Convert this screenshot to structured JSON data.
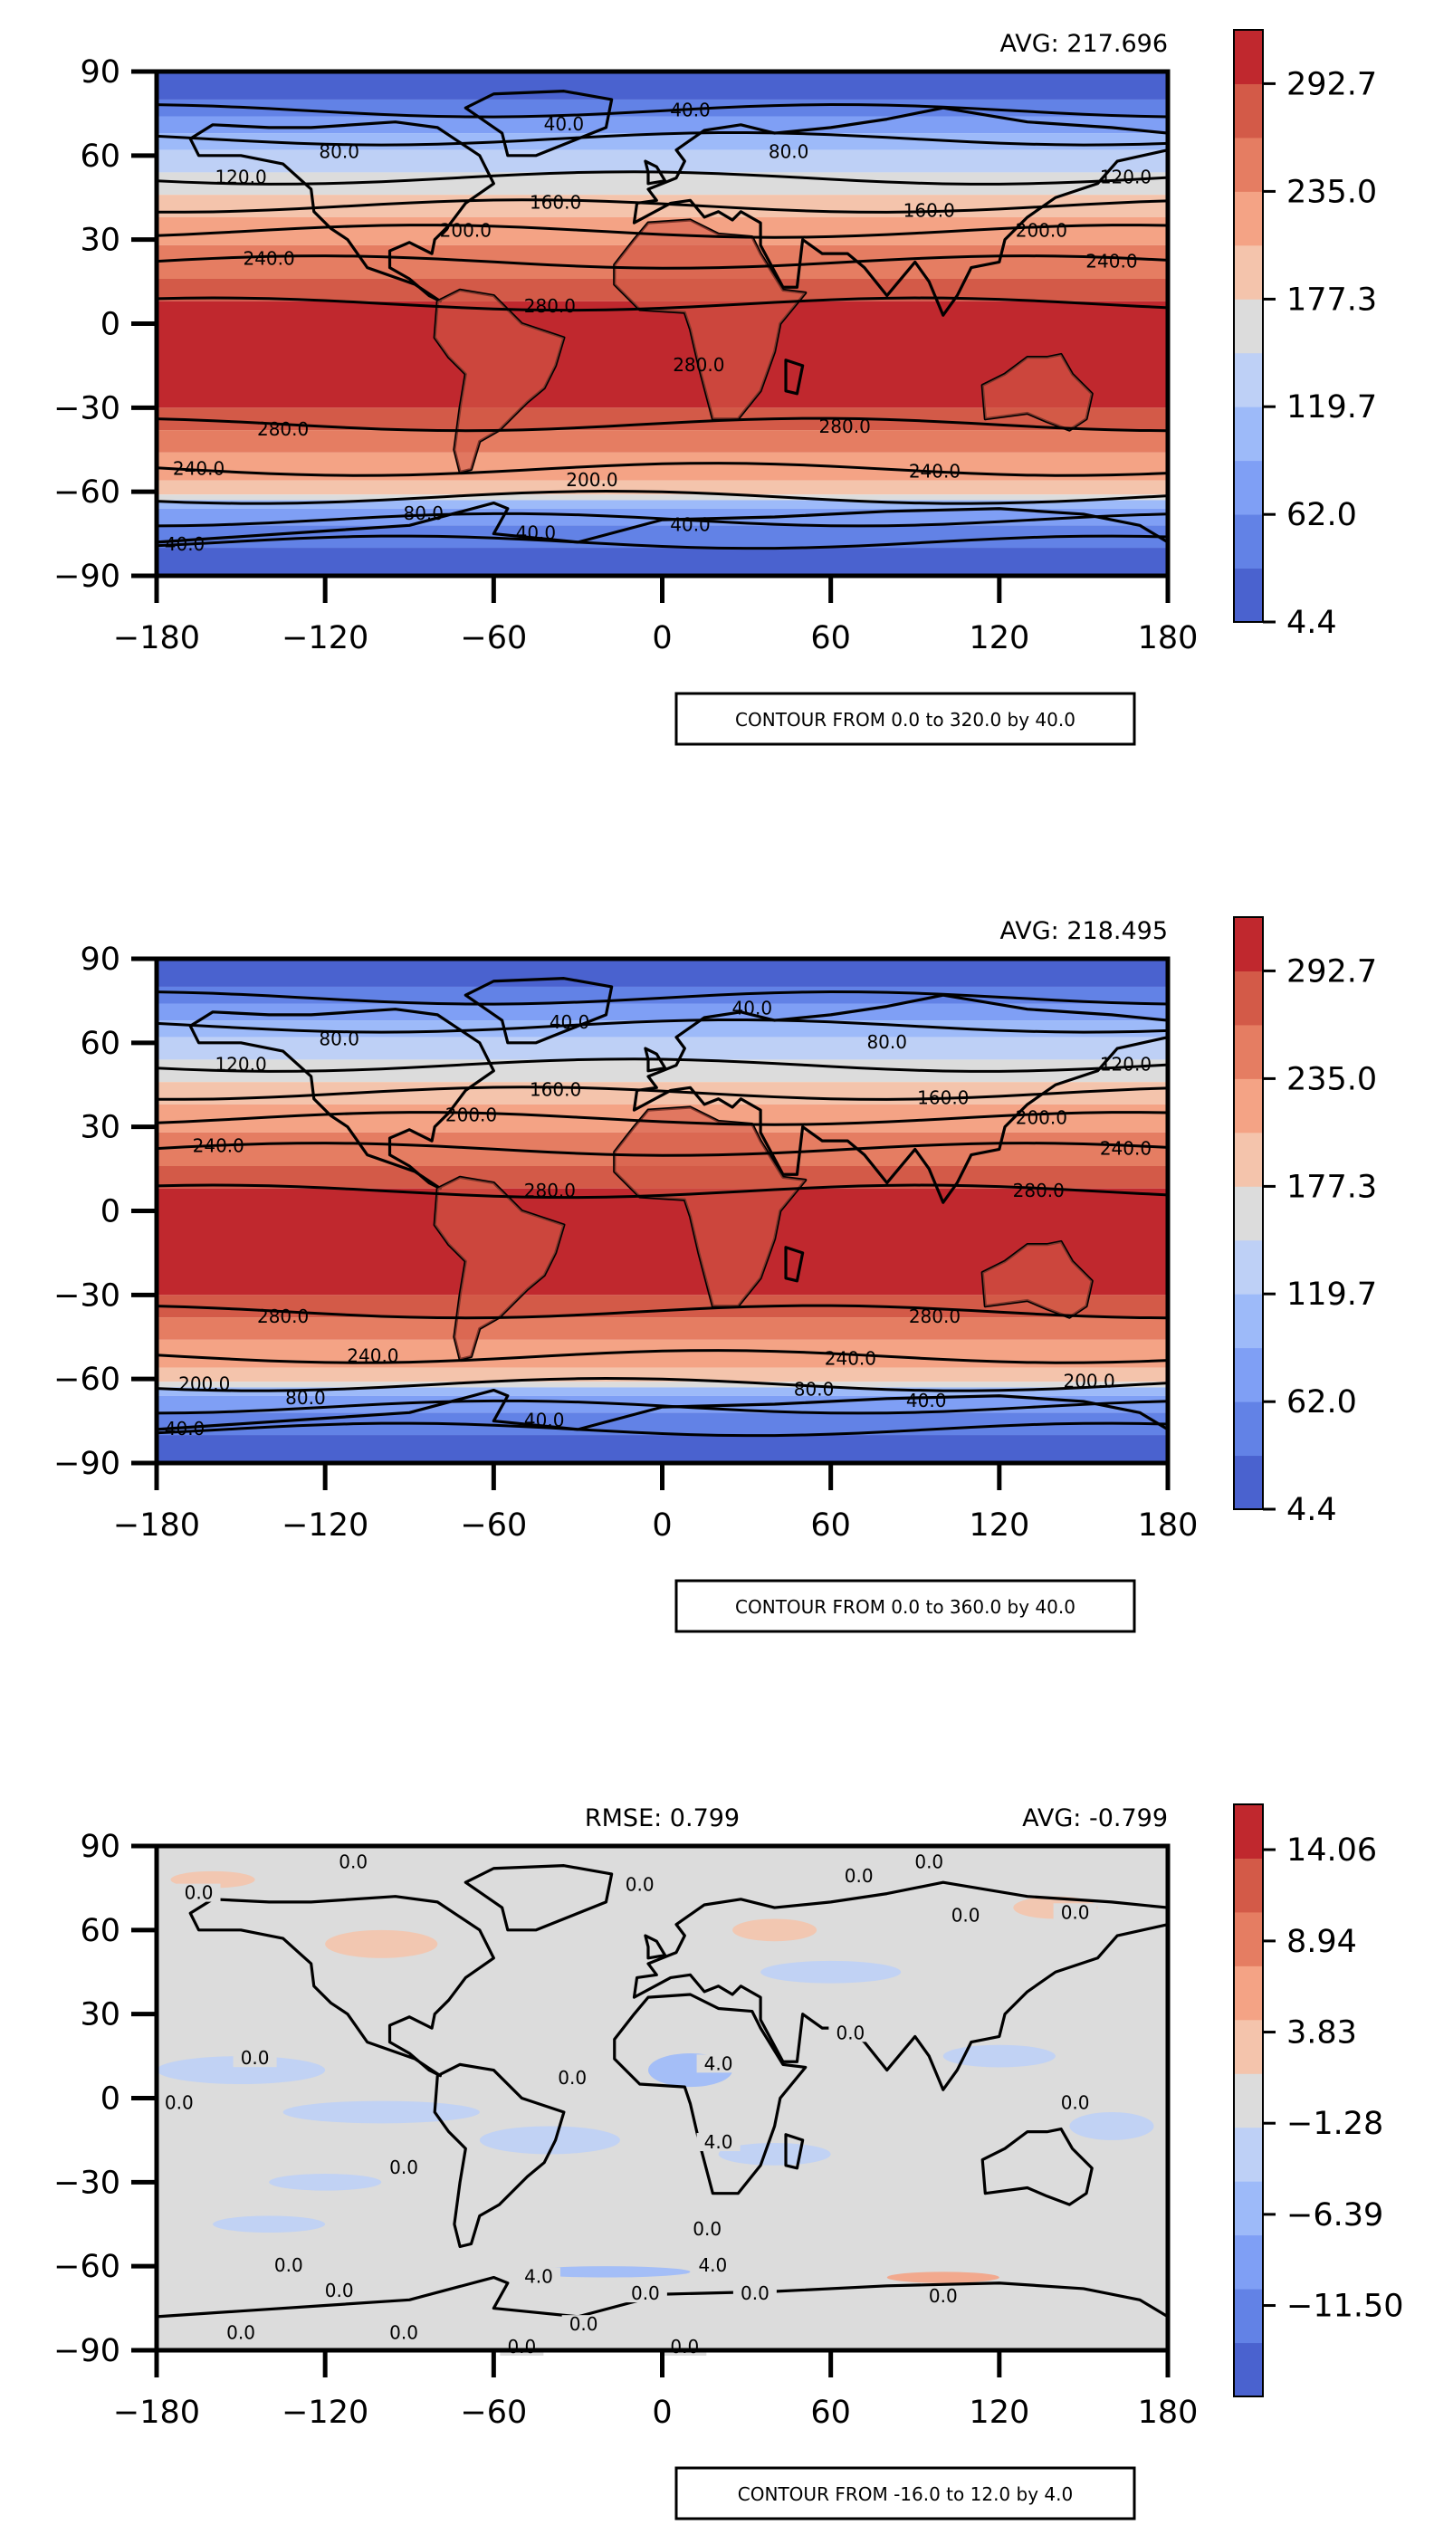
{
  "chart_data": [
    {
      "type": "heatmap",
      "title": "",
      "avg_label": "AVG: 217.696",
      "rmse_label": "",
      "xlim": [
        -180,
        180
      ],
      "ylim": [
        -90,
        90
      ],
      "x_ticks": [
        "−180",
        "−120",
        "−60",
        "0",
        "60",
        "120",
        "180"
      ],
      "y_ticks": [
        "90",
        "60",
        "30",
        "0",
        "−30",
        "−60",
        "−90"
      ],
      "colorbar_range": [
        4.4,
        321.5
      ],
      "colorbar_ticks": [
        "4.4",
        "62.0",
        "119.7",
        "177.3",
        "235.0",
        "292.7"
      ],
      "colorbar_tick_values": [
        4.4,
        62.0,
        119.7,
        177.3,
        235.0,
        292.7
      ],
      "colormap": [
        "#4a62cf",
        "#6282e6",
        "#7f9ff5",
        "#9dbaf9",
        "#bed0f6",
        "#dcdcdc",
        "#f4c4ac",
        "#f4a385",
        "#e57d62",
        "#d35a48",
        "#c0282e"
      ],
      "contour_note": "CONTOUR FROM 0.0 to 320.0 by 40.0",
      "contour_labels": [
        {
          "text": "40.0",
          "lon": 10,
          "lat": 76
        },
        {
          "text": "40.0",
          "lon": -35,
          "lat": 71
        },
        {
          "text": "80.0",
          "lon": -115,
          "lat": 61
        },
        {
          "text": "80.0",
          "lon": 45,
          "lat": 61
        },
        {
          "text": "120.0",
          "lon": -150,
          "lat": 52
        },
        {
          "text": "120.0",
          "lon": 165,
          "lat": 52
        },
        {
          "text": "160.0",
          "lon": -38,
          "lat": 43
        },
        {
          "text": "160.0",
          "lon": 95,
          "lat": 40
        },
        {
          "text": "200.0",
          "lon": -70,
          "lat": 33
        },
        {
          "text": "200.0",
          "lon": 135,
          "lat": 33
        },
        {
          "text": "240.0",
          "lon": -140,
          "lat": 23
        },
        {
          "text": "240.0",
          "lon": 160,
          "lat": 22
        },
        {
          "text": "280.0",
          "lon": -40,
          "lat": 6
        },
        {
          "text": "280.0",
          "lon": 13,
          "lat": -15
        },
        {
          "text": "280.0",
          "lon": -135,
          "lat": -38
        },
        {
          "text": "280.0",
          "lon": 65,
          "lat": -37
        },
        {
          "text": "240.0",
          "lon": -165,
          "lat": -52
        },
        {
          "text": "240.0",
          "lon": 97,
          "lat": -53
        },
        {
          "text": "200.0",
          "lon": -25,
          "lat": -56
        },
        {
          "text": "80.0",
          "lon": -85,
          "lat": -68
        },
        {
          "text": "40.0",
          "lon": -45,
          "lat": -75
        },
        {
          "text": "40.0",
          "lon": 10,
          "lat": -72
        },
        {
          "text": "40.0",
          "lon": -170,
          "lat": -79
        }
      ]
    },
    {
      "type": "heatmap",
      "title": "",
      "avg_label": "AVG: 218.495",
      "rmse_label": "",
      "xlim": [
        -180,
        180
      ],
      "ylim": [
        -90,
        90
      ],
      "x_ticks": [
        "−180",
        "−120",
        "−60",
        "0",
        "60",
        "120",
        "180"
      ],
      "y_ticks": [
        "90",
        "60",
        "30",
        "0",
        "−30",
        "−60",
        "−90"
      ],
      "colorbar_range": [
        4.4,
        321.5
      ],
      "colorbar_ticks": [
        "4.4",
        "62.0",
        "119.7",
        "177.3",
        "235.0",
        "292.7"
      ],
      "colorbar_tick_values": [
        4.4,
        62.0,
        119.7,
        177.3,
        235.0,
        292.7
      ],
      "colormap": [
        "#4a62cf",
        "#6282e6",
        "#7f9ff5",
        "#9dbaf9",
        "#bed0f6",
        "#dcdcdc",
        "#f4c4ac",
        "#f4a385",
        "#e57d62",
        "#d35a48",
        "#c0282e"
      ],
      "contour_note": "CONTOUR FROM 0.0 to 360.0 by 40.0",
      "contour_labels": [
        {
          "text": "40.0",
          "lon": 32,
          "lat": 72
        },
        {
          "text": "40.0",
          "lon": -33,
          "lat": 67
        },
        {
          "text": "80.0",
          "lon": -115,
          "lat": 61
        },
        {
          "text": "80.0",
          "lon": 80,
          "lat": 60
        },
        {
          "text": "120.0",
          "lon": -150,
          "lat": 52
        },
        {
          "text": "120.0",
          "lon": 165,
          "lat": 52
        },
        {
          "text": "160.0",
          "lon": -38,
          "lat": 43
        },
        {
          "text": "160.0",
          "lon": 100,
          "lat": 40
        },
        {
          "text": "200.0",
          "lon": -68,
          "lat": 34
        },
        {
          "text": "200.0",
          "lon": 135,
          "lat": 33
        },
        {
          "text": "240.0",
          "lon": -158,
          "lat": 23
        },
        {
          "text": "240.0",
          "lon": 165,
          "lat": 22
        },
        {
          "text": "280.0",
          "lon": -40,
          "lat": 7
        },
        {
          "text": "280.0",
          "lon": 134,
          "lat": 7
        },
        {
          "text": "280.0",
          "lon": -135,
          "lat": -38
        },
        {
          "text": "280.0",
          "lon": 97,
          "lat": -38
        },
        {
          "text": "240.0",
          "lon": -103,
          "lat": -52
        },
        {
          "text": "240.0",
          "lon": 67,
          "lat": -53
        },
        {
          "text": "200.0",
          "lon": -163,
          "lat": -62
        },
        {
          "text": "200.0",
          "lon": 152,
          "lat": -61
        },
        {
          "text": "80.0",
          "lon": -127,
          "lat": -67
        },
        {
          "text": "80.0",
          "lon": 54,
          "lat": -64
        },
        {
          "text": "40.0",
          "lon": 94,
          "lat": -68
        },
        {
          "text": "40.0",
          "lon": -42,
          "lat": -75
        },
        {
          "text": "40.0",
          "lon": -170,
          "lat": -78
        }
      ]
    },
    {
      "type": "heatmap",
      "title": "",
      "avg_label": "AVG: -0.799",
      "rmse_label": "RMSE: 0.799",
      "xlim": [
        -180,
        180
      ],
      "ylim": [
        -90,
        90
      ],
      "x_ticks": [
        "−180",
        "−120",
        "−60",
        "0",
        "60",
        "120",
        "180"
      ],
      "y_ticks": [
        "90",
        "60",
        "30",
        "0",
        "−30",
        "−60",
        "−90"
      ],
      "colorbar_range": [
        -16.6,
        16.6
      ],
      "colorbar_ticks": [
        "−11.50",
        "−6.39",
        "−1.28",
        "3.83",
        "8.94",
        "14.06"
      ],
      "colorbar_tick_values": [
        -11.5,
        -6.39,
        -1.28,
        3.83,
        8.94,
        14.06
      ],
      "colormap": [
        "#4a62cf",
        "#6282e6",
        "#7f9ff5",
        "#9dbaf9",
        "#bed0f6",
        "#dcdcdc",
        "#f4c4ac",
        "#f4a385",
        "#e57d62",
        "#d35a48",
        "#c0282e"
      ],
      "contour_note": "CONTOUR FROM -16.0 to 12.0 by 4.0",
      "contour_labels": [
        {
          "text": "0.0",
          "lon": -110,
          "lat": 84
        },
        {
          "text": "0.0",
          "lon": 95,
          "lat": 84
        },
        {
          "text": "0.0",
          "lon": -165,
          "lat": 73
        },
        {
          "text": "0.0",
          "lon": -8,
          "lat": 76
        },
        {
          "text": "0.0",
          "lon": 70,
          "lat": 79
        },
        {
          "text": "0.0",
          "lon": 108,
          "lat": 65
        },
        {
          "text": "0.0",
          "lon": 147,
          "lat": 66
        },
        {
          "text": "0.0",
          "lon": -145,
          "lat": 14
        },
        {
          "text": "0.0",
          "lon": -172,
          "lat": -2
        },
        {
          "text": "0.0",
          "lon": -32,
          "lat": 7
        },
        {
          "text": "0.0",
          "lon": 67,
          "lat": 23
        },
        {
          "text": "4.0",
          "lon": 20,
          "lat": 12
        },
        {
          "text": "0.0",
          "lon": 147,
          "lat": -2
        },
        {
          "text": "4.0",
          "lon": 20,
          "lat": -16
        },
        {
          "text": "0.0",
          "lon": -92,
          "lat": -25
        },
        {
          "text": "0.0",
          "lon": 16,
          "lat": -47
        },
        {
          "text": "0.0",
          "lon": -133,
          "lat": -60
        },
        {
          "text": "0.0",
          "lon": -115,
          "lat": -69
        },
        {
          "text": "4.0",
          "lon": -44,
          "lat": -64
        },
        {
          "text": "0.0",
          "lon": -6,
          "lat": -70
        },
        {
          "text": "4.0",
          "lon": 18,
          "lat": -60
        },
        {
          "text": "0.0",
          "lon": 33,
          "lat": -70
        },
        {
          "text": "0.0",
          "lon": 100,
          "lat": -71
        },
        {
          "text": "0.0",
          "lon": -28,
          "lat": -81
        },
        {
          "text": "0.0",
          "lon": -92,
          "lat": -84
        },
        {
          "text": "0.0",
          "lon": -50,
          "lat": -89
        },
        {
          "text": "0.0",
          "lon": 8,
          "lat": -89
        },
        {
          "text": "0.0",
          "lon": -150,
          "lat": -84
        }
      ]
    }
  ]
}
